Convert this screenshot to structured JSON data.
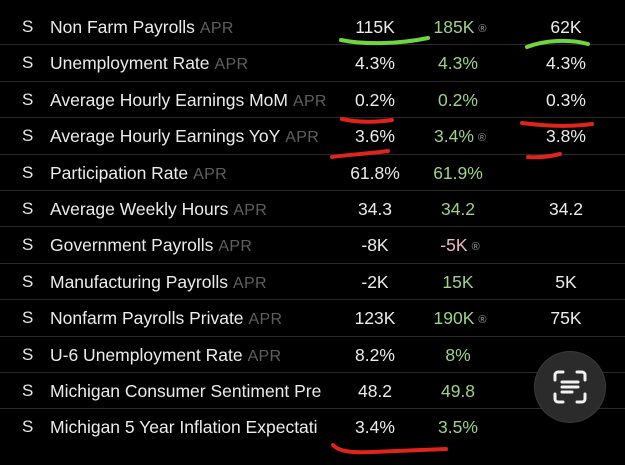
{
  "table": {
    "rows": [
      {
        "flag": "S",
        "name": "Non Farm Payrolls",
        "period": "APR",
        "actual": "115K",
        "forecast": "185K",
        "forecast_dot": "®",
        "previous": "62K"
      },
      {
        "flag": "S",
        "name": "Unemployment Rate",
        "period": "APR",
        "actual": "4.3%",
        "forecast": "4.3%",
        "forecast_dot": "",
        "previous": "4.3%"
      },
      {
        "flag": "S",
        "name": "Average Hourly Earnings MoM",
        "period": "APR",
        "actual": "0.2%",
        "forecast": "0.2%",
        "forecast_dot": "",
        "previous": "0.3%"
      },
      {
        "flag": "S",
        "name": "Average Hourly Earnings YoY",
        "period": "APR",
        "actual": "3.6%",
        "forecast": "3.4%",
        "forecast_dot": "®",
        "previous": "3.8%"
      },
      {
        "flag": "S",
        "name": "Participation Rate",
        "period": "APR",
        "actual": "61.8%",
        "forecast": "61.9%",
        "forecast_dot": "",
        "previous": ""
      },
      {
        "flag": "S",
        "name": "Average Weekly Hours",
        "period": "APR",
        "actual": "34.3",
        "forecast": "34.2",
        "forecast_dot": "",
        "previous": "34.2"
      },
      {
        "flag": "S",
        "name": "Government Payrolls",
        "period": "APR",
        "actual": "-8K",
        "forecast": "-5K",
        "forecast_dot": "®",
        "previous": ""
      },
      {
        "flag": "S",
        "name": "Manufacturing Payrolls",
        "period": "APR",
        "actual": "-2K",
        "forecast": "15K",
        "forecast_dot": "",
        "previous": "5K"
      },
      {
        "flag": "S",
        "name": "Nonfarm Payrolls Private",
        "period": "APR",
        "actual": "123K",
        "forecast": "190K",
        "forecast_dot": "®",
        "previous": "75K"
      },
      {
        "flag": "S",
        "name": "U-6 Unemployment Rate",
        "period": "APR",
        "actual": "8.2%",
        "forecast": "8%",
        "forecast_dot": "",
        "previous": ""
      },
      {
        "flag": "S",
        "name": "Michigan Consumer Sentiment Pre",
        "period": "",
        "actual": "48.2",
        "forecast": "49.8",
        "forecast_dot": "",
        "previous": ""
      },
      {
        "flag": "S",
        "name": "Michigan 5 Year Inflation Expectati",
        "period": "",
        "actual": "3.4%",
        "forecast": "3.5%",
        "forecast_dot": "",
        "previous": ""
      }
    ]
  },
  "colors": {
    "background": "#000000",
    "text": "#ececec",
    "forecast_positive": "#9fd28a",
    "forecast_negative": "#f0b9c4",
    "period": "#5f5f5f",
    "annotation_green": "#6fd640",
    "annotation_red": "#e0231b"
  },
  "icons": {
    "lens_button": "visual-lookup-icon"
  }
}
